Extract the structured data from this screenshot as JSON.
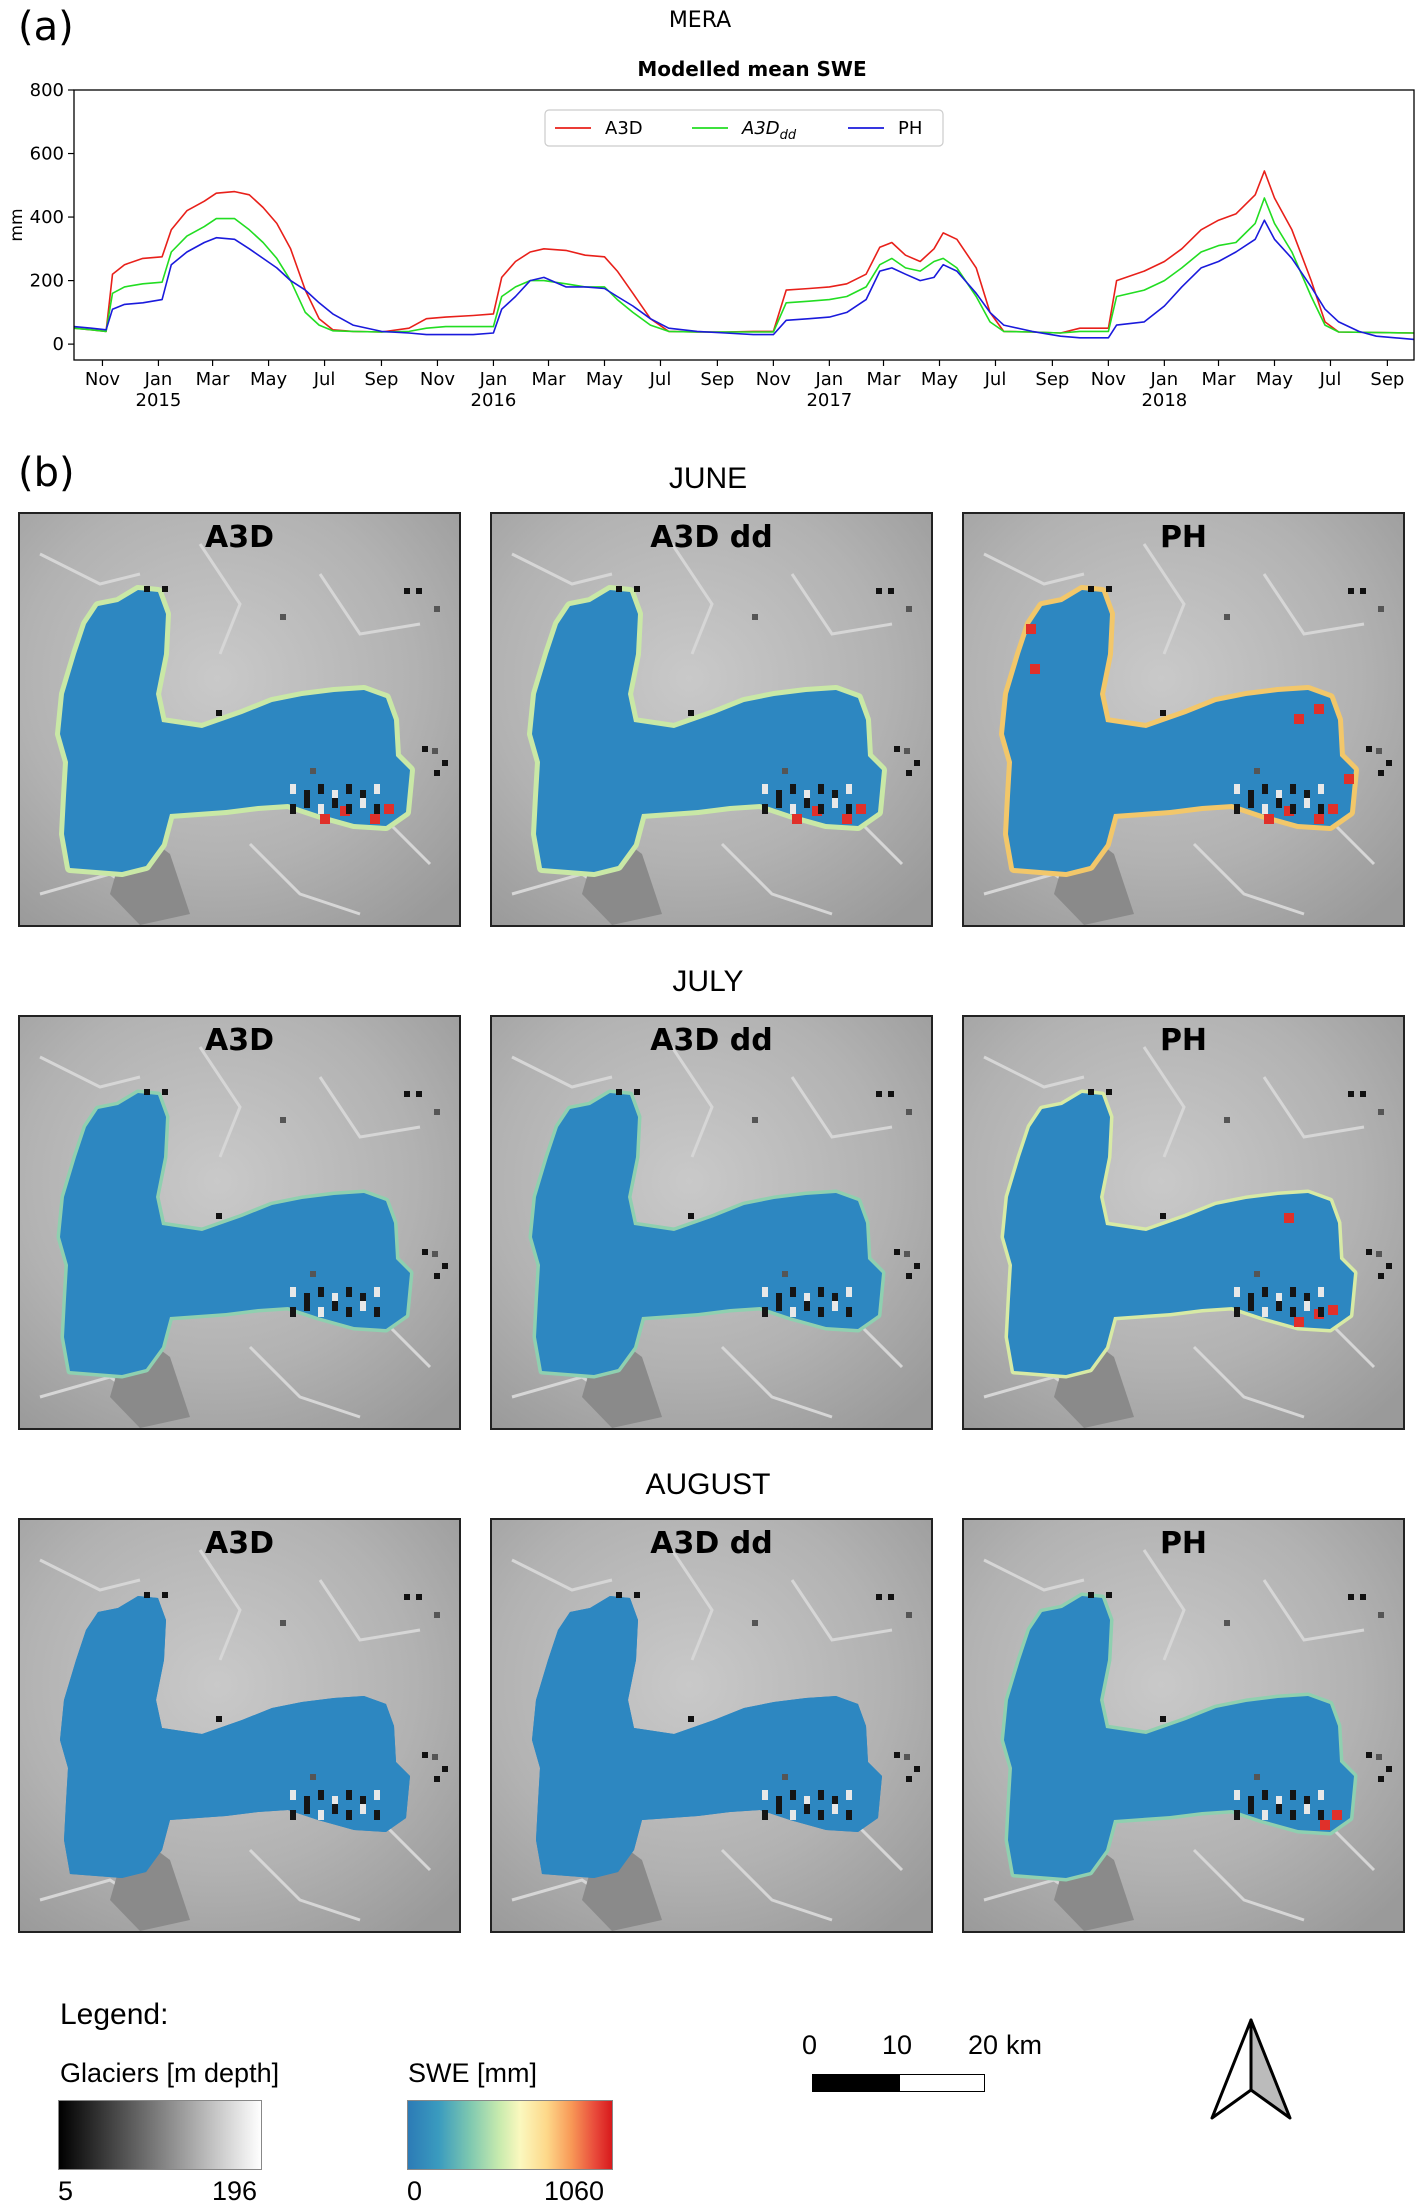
{
  "panel_a_label": "(a)",
  "panel_b_label": "(b)",
  "super_title": "MERA",
  "colors": {
    "A3D": "#e8201a",
    "A3D_dd": "#22dd22",
    "PH": "#1a1adc",
    "swe_blue": "#2d87c1",
    "terrain_gray": "#b4b4b4"
  },
  "chart_data": {
    "type": "line",
    "title": "Modelled mean SWE",
    "xlabel": "",
    "ylabel": "mm",
    "ylim": [
      -50,
      800
    ],
    "yticks": [
      0,
      200,
      400,
      600,
      800
    ],
    "x_start": "2014-10-01",
    "x_end": "2018-09-30",
    "month_ticks": [
      {
        "date": "2014-11-01",
        "label": "Nov",
        "year": ""
      },
      {
        "date": "2015-01-01",
        "label": "Jan",
        "year": "2015"
      },
      {
        "date": "2015-03-01",
        "label": "Mar",
        "year": ""
      },
      {
        "date": "2015-05-01",
        "label": "May",
        "year": ""
      },
      {
        "date": "2015-07-01",
        "label": "Jul",
        "year": ""
      },
      {
        "date": "2015-09-01",
        "label": "Sep",
        "year": ""
      },
      {
        "date": "2015-11-01",
        "label": "Nov",
        "year": ""
      },
      {
        "date": "2016-01-01",
        "label": "Jan",
        "year": "2016"
      },
      {
        "date": "2016-03-01",
        "label": "Mar",
        "year": ""
      },
      {
        "date": "2016-05-01",
        "label": "May",
        "year": ""
      },
      {
        "date": "2016-07-01",
        "label": "Jul",
        "year": ""
      },
      {
        "date": "2016-09-01",
        "label": "Sep",
        "year": ""
      },
      {
        "date": "2016-11-01",
        "label": "Nov",
        "year": ""
      },
      {
        "date": "2017-01-01",
        "label": "Jan",
        "year": "2017"
      },
      {
        "date": "2017-03-01",
        "label": "Mar",
        "year": ""
      },
      {
        "date": "2017-05-01",
        "label": "May",
        "year": ""
      },
      {
        "date": "2017-07-01",
        "label": "Jul",
        "year": ""
      },
      {
        "date": "2017-09-01",
        "label": "Sep",
        "year": ""
      },
      {
        "date": "2017-11-01",
        "label": "Nov",
        "year": ""
      },
      {
        "date": "2018-01-01",
        "label": "Jan",
        "year": "2018"
      },
      {
        "date": "2018-03-01",
        "label": "Mar",
        "year": ""
      },
      {
        "date": "2018-05-01",
        "label": "May",
        "year": ""
      },
      {
        "date": "2018-07-01",
        "label": "Jul",
        "year": ""
      },
      {
        "date": "2018-09-01",
        "label": "Sep",
        "year": ""
      }
    ],
    "legend_placement": "upper-center",
    "series": [
      {
        "name": "A3D",
        "legend": "A3D",
        "color": "#e8201a",
        "points": [
          [
            "2014-10-01",
            50
          ],
          [
            "2014-10-20",
            45
          ],
          [
            "2014-11-05",
            40
          ],
          [
            "2014-11-12",
            220
          ],
          [
            "2014-11-25",
            250
          ],
          [
            "2014-12-15",
            270
          ],
          [
            "2015-01-05",
            275
          ],
          [
            "2015-01-15",
            360
          ],
          [
            "2015-02-01",
            420
          ],
          [
            "2015-02-20",
            450
          ],
          [
            "2015-03-05",
            475
          ],
          [
            "2015-03-25",
            480
          ],
          [
            "2015-04-10",
            470
          ],
          [
            "2015-04-25",
            430
          ],
          [
            "2015-05-10",
            380
          ],
          [
            "2015-05-25",
            300
          ],
          [
            "2015-06-10",
            170
          ],
          [
            "2015-06-25",
            80
          ],
          [
            "2015-07-10",
            45
          ],
          [
            "2015-08-01",
            40
          ],
          [
            "2015-09-01",
            38
          ],
          [
            "2015-10-01",
            50
          ],
          [
            "2015-10-20",
            80
          ],
          [
            "2015-11-10",
            85
          ],
          [
            "2015-12-10",
            90
          ],
          [
            "2016-01-01",
            95
          ],
          [
            "2016-01-10",
            210
          ],
          [
            "2016-01-25",
            260
          ],
          [
            "2016-02-10",
            290
          ],
          [
            "2016-02-25",
            300
          ],
          [
            "2016-03-20",
            295
          ],
          [
            "2016-04-10",
            280
          ],
          [
            "2016-05-01",
            275
          ],
          [
            "2016-05-15",
            230
          ],
          [
            "2016-06-01",
            160
          ],
          [
            "2016-06-20",
            80
          ],
          [
            "2016-07-10",
            40
          ],
          [
            "2016-08-10",
            38
          ],
          [
            "2016-09-10",
            38
          ],
          [
            "2016-10-10",
            40
          ],
          [
            "2016-11-01",
            40
          ],
          [
            "2016-11-15",
            170
          ],
          [
            "2016-12-10",
            175
          ],
          [
            "2017-01-01",
            180
          ],
          [
            "2017-01-20",
            190
          ],
          [
            "2017-02-10",
            220
          ],
          [
            "2017-02-25",
            305
          ],
          [
            "2017-03-10",
            320
          ],
          [
            "2017-03-25",
            280
          ],
          [
            "2017-04-10",
            260
          ],
          [
            "2017-04-25",
            300
          ],
          [
            "2017-05-05",
            350
          ],
          [
            "2017-05-20",
            330
          ],
          [
            "2017-06-10",
            240
          ],
          [
            "2017-06-25",
            100
          ],
          [
            "2017-07-10",
            40
          ],
          [
            "2017-08-10",
            38
          ],
          [
            "2017-09-10",
            35
          ],
          [
            "2017-10-01",
            50
          ],
          [
            "2017-11-01",
            50
          ],
          [
            "2017-11-10",
            200
          ],
          [
            "2017-12-10",
            230
          ],
          [
            "2018-01-01",
            260
          ],
          [
            "2018-01-20",
            300
          ],
          [
            "2018-02-10",
            360
          ],
          [
            "2018-03-01",
            390
          ],
          [
            "2018-03-20",
            410
          ],
          [
            "2018-04-10",
            470
          ],
          [
            "2018-04-20",
            545
          ],
          [
            "2018-05-01",
            460
          ],
          [
            "2018-05-20",
            360
          ],
          [
            "2018-06-10",
            200
          ],
          [
            "2018-06-25",
            70
          ],
          [
            "2018-07-10",
            38
          ],
          [
            "2018-09-30",
            35
          ]
        ]
      },
      {
        "name": "A3D_dd",
        "legend": "A3Ddd",
        "color": "#22dd22",
        "points": [
          [
            "2014-10-01",
            50
          ],
          [
            "2014-10-20",
            45
          ],
          [
            "2014-11-05",
            40
          ],
          [
            "2014-11-12",
            160
          ],
          [
            "2014-11-25",
            180
          ],
          [
            "2014-12-15",
            190
          ],
          [
            "2015-01-05",
            195
          ],
          [
            "2015-01-15",
            290
          ],
          [
            "2015-02-01",
            340
          ],
          [
            "2015-02-20",
            370
          ],
          [
            "2015-03-05",
            395
          ],
          [
            "2015-03-25",
            395
          ],
          [
            "2015-04-10",
            360
          ],
          [
            "2015-04-25",
            320
          ],
          [
            "2015-05-10",
            270
          ],
          [
            "2015-05-25",
            200
          ],
          [
            "2015-06-10",
            100
          ],
          [
            "2015-06-25",
            60
          ],
          [
            "2015-07-10",
            42
          ],
          [
            "2015-08-01",
            40
          ],
          [
            "2015-09-01",
            38
          ],
          [
            "2015-10-01",
            40
          ],
          [
            "2015-10-20",
            50
          ],
          [
            "2015-11-10",
            55
          ],
          [
            "2015-12-10",
            55
          ],
          [
            "2016-01-01",
            55
          ],
          [
            "2016-01-10",
            150
          ],
          [
            "2016-01-25",
            180
          ],
          [
            "2016-02-10",
            200
          ],
          [
            "2016-02-25",
            200
          ],
          [
            "2016-03-20",
            190
          ],
          [
            "2016-04-10",
            180
          ],
          [
            "2016-05-01",
            180
          ],
          [
            "2016-05-15",
            140
          ],
          [
            "2016-06-01",
            100
          ],
          [
            "2016-06-20",
            60
          ],
          [
            "2016-07-10",
            40
          ],
          [
            "2016-08-10",
            38
          ],
          [
            "2016-09-10",
            38
          ],
          [
            "2016-10-10",
            38
          ],
          [
            "2016-11-01",
            38
          ],
          [
            "2016-11-15",
            130
          ],
          [
            "2016-12-10",
            135
          ],
          [
            "2017-01-01",
            140
          ],
          [
            "2017-01-20",
            150
          ],
          [
            "2017-02-10",
            180
          ],
          [
            "2017-02-25",
            250
          ],
          [
            "2017-03-10",
            270
          ],
          [
            "2017-03-25",
            240
          ],
          [
            "2017-04-10",
            230
          ],
          [
            "2017-04-25",
            260
          ],
          [
            "2017-05-05",
            270
          ],
          [
            "2017-05-20",
            240
          ],
          [
            "2017-06-10",
            150
          ],
          [
            "2017-06-25",
            70
          ],
          [
            "2017-07-10",
            40
          ],
          [
            "2017-08-10",
            38
          ],
          [
            "2017-09-10",
            35
          ],
          [
            "2017-10-01",
            40
          ],
          [
            "2017-11-01",
            40
          ],
          [
            "2017-11-10",
            150
          ],
          [
            "2017-12-10",
            170
          ],
          [
            "2018-01-01",
            200
          ],
          [
            "2018-01-20",
            240
          ],
          [
            "2018-02-10",
            290
          ],
          [
            "2018-03-01",
            310
          ],
          [
            "2018-03-20",
            320
          ],
          [
            "2018-04-10",
            380
          ],
          [
            "2018-04-20",
            460
          ],
          [
            "2018-05-01",
            380
          ],
          [
            "2018-05-20",
            290
          ],
          [
            "2018-06-10",
            150
          ],
          [
            "2018-06-25",
            60
          ],
          [
            "2018-07-10",
            38
          ],
          [
            "2018-09-30",
            35
          ]
        ]
      },
      {
        "name": "PH",
        "legend": "PH",
        "color": "#1a1adc",
        "points": [
          [
            "2014-10-01",
            55
          ],
          [
            "2014-10-20",
            50
          ],
          [
            "2014-11-05",
            45
          ],
          [
            "2014-11-12",
            110
          ],
          [
            "2014-11-25",
            125
          ],
          [
            "2014-12-15",
            130
          ],
          [
            "2015-01-05",
            140
          ],
          [
            "2015-01-15",
            250
          ],
          [
            "2015-02-01",
            290
          ],
          [
            "2015-02-20",
            320
          ],
          [
            "2015-03-05",
            335
          ],
          [
            "2015-03-25",
            330
          ],
          [
            "2015-04-10",
            300
          ],
          [
            "2015-04-25",
            270
          ],
          [
            "2015-05-10",
            240
          ],
          [
            "2015-05-25",
            200
          ],
          [
            "2015-06-10",
            170
          ],
          [
            "2015-06-25",
            130
          ],
          [
            "2015-07-10",
            95
          ],
          [
            "2015-08-01",
            60
          ],
          [
            "2015-09-01",
            40
          ],
          [
            "2015-10-01",
            35
          ],
          [
            "2015-10-20",
            30
          ],
          [
            "2015-11-10",
            30
          ],
          [
            "2015-12-10",
            30
          ],
          [
            "2016-01-01",
            35
          ],
          [
            "2016-01-10",
            110
          ],
          [
            "2016-01-25",
            150
          ],
          [
            "2016-02-10",
            200
          ],
          [
            "2016-02-25",
            210
          ],
          [
            "2016-03-20",
            180
          ],
          [
            "2016-04-10",
            180
          ],
          [
            "2016-05-01",
            175
          ],
          [
            "2016-05-15",
            150
          ],
          [
            "2016-06-01",
            120
          ],
          [
            "2016-06-20",
            80
          ],
          [
            "2016-07-10",
            50
          ],
          [
            "2016-08-10",
            40
          ],
          [
            "2016-09-10",
            35
          ],
          [
            "2016-10-10",
            30
          ],
          [
            "2016-11-01",
            30
          ],
          [
            "2016-11-15",
            75
          ],
          [
            "2016-12-10",
            80
          ],
          [
            "2017-01-01",
            85
          ],
          [
            "2017-01-20",
            100
          ],
          [
            "2017-02-10",
            140
          ],
          [
            "2017-02-25",
            230
          ],
          [
            "2017-03-10",
            240
          ],
          [
            "2017-03-25",
            220
          ],
          [
            "2017-04-10",
            200
          ],
          [
            "2017-04-25",
            210
          ],
          [
            "2017-05-05",
            250
          ],
          [
            "2017-05-20",
            230
          ],
          [
            "2017-06-10",
            160
          ],
          [
            "2017-06-25",
            100
          ],
          [
            "2017-07-10",
            60
          ],
          [
            "2017-08-10",
            40
          ],
          [
            "2017-09-10",
            25
          ],
          [
            "2017-10-01",
            20
          ],
          [
            "2017-11-01",
            20
          ],
          [
            "2017-11-10",
            60
          ],
          [
            "2017-12-10",
            70
          ],
          [
            "2018-01-01",
            120
          ],
          [
            "2018-01-20",
            180
          ],
          [
            "2018-02-10",
            240
          ],
          [
            "2018-03-01",
            260
          ],
          [
            "2018-03-20",
            290
          ],
          [
            "2018-04-10",
            330
          ],
          [
            "2018-04-20",
            390
          ],
          [
            "2018-05-01",
            330
          ],
          [
            "2018-05-20",
            270
          ],
          [
            "2018-06-10",
            180
          ],
          [
            "2018-06-25",
            110
          ],
          [
            "2018-07-10",
            70
          ],
          [
            "2018-08-01",
            40
          ],
          [
            "2018-08-20",
            25
          ],
          [
            "2018-09-30",
            15
          ]
        ]
      }
    ]
  },
  "maps": {
    "columns": [
      "A3D",
      "A3D dd",
      "PH"
    ],
    "rows": [
      {
        "month": "JUNE"
      },
      {
        "month": "JULY"
      },
      {
        "month": "AUGUST"
      }
    ]
  },
  "legend": {
    "title": "Legend:",
    "glaciers_label": "Glaciers [m depth]",
    "glaciers_min": "5",
    "glaciers_max": "196",
    "swe_label": "SWE [mm]",
    "swe_min": "0",
    "swe_max": "1060",
    "scale_ticks": [
      "0",
      "10",
      "20"
    ],
    "scale_unit": "km",
    "north_arrow_icon": "north-arrow-icon"
  }
}
